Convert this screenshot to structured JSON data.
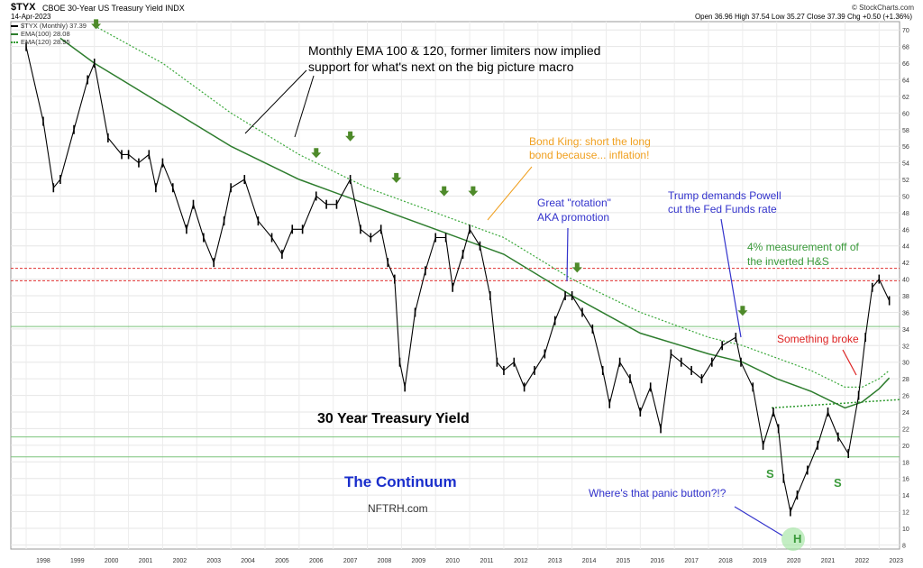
{
  "header": {
    "symbol": "$TYX",
    "description": "CBOE 30-Year US Treasury Yield INDX",
    "date": "14-Apr-2023",
    "watermark": "© StockCharts.com",
    "ohlc": "Open 36.96  High 37.54  Low 35.27  Close 37.39  Chg +0.50 (+1.36%)"
  },
  "legend": {
    "price": "$TYX (Monthly) 37.39",
    "ema100": "EMA(100) 28.08",
    "ema120": "EMA(120) 28.95"
  },
  "annotations": {
    "ema_note_1": "Monthly EMA 100 & 120, former limiters now implied",
    "ema_note_2": "support for what's next on the big picture macro",
    "bond_king_1": "Bond King: short the long",
    "bond_king_2": "bond because... inflation!",
    "rotation_1": "Great \"rotation\"",
    "rotation_2": "AKA promotion",
    "trump_1": "Trump demands Powell",
    "trump_2": "cut the Fed Funds rate",
    "measure_1": "4% measurement off of",
    "measure_2": "the inverted H&S",
    "broke": "Something broke",
    "title": "30 Year Treasury Yield",
    "continuum": "The Continuum",
    "site": "NFTRH.com",
    "panic": "Where's that panic button?!?",
    "s_left": "S",
    "s_right": "S",
    "head": "H"
  },
  "colors": {
    "ema100": "#2e7d2e",
    "ema120": "#3aa83a",
    "arrow_green": "#4e8a2a",
    "red_line": "#e03030",
    "green_line": "#7cc47c",
    "blue_text": "#3333cc",
    "orange_text": "#f0a020",
    "green_text": "#3a9a3a",
    "red_text": "#dd2222",
    "title_blue": "#1a2ecc"
  },
  "chart_data": {
    "type": "line",
    "title": "30 Year Treasury Yield",
    "x_ticks": [
      "1998",
      "1999",
      "2000",
      "2001",
      "2002",
      "2003",
      "2004",
      "2005",
      "2006",
      "2007",
      "2008",
      "2009",
      "2010",
      "2011",
      "2012",
      "2013",
      "2014",
      "2015",
      "2016",
      "2017",
      "2018",
      "2019",
      "2020",
      "2021",
      "2022",
      "2023"
    ],
    "y_ticks": [
      8,
      10,
      12,
      14,
      16,
      18,
      20,
      22,
      24,
      26,
      28,
      30,
      32,
      34,
      36,
      38,
      40,
      42,
      44,
      46,
      48,
      50,
      52,
      54,
      56,
      58,
      60,
      62,
      64,
      66,
      68,
      70
    ],
    "ylim": [
      7.5,
      71
    ],
    "xlim": [
      1997.55,
      2023.6
    ],
    "grid": true,
    "scale": "linear",
    "x": [
      1998.0,
      1998.5,
      1998.8,
      1999.0,
      1999.4,
      1999.8,
      2000.0,
      2000.4,
      2000.8,
      2001.0,
      2001.3,
      2001.6,
      2001.8,
      2002.0,
      2002.3,
      2002.7,
      2002.9,
      2003.2,
      2003.5,
      2003.8,
      2004.0,
      2004.4,
      2004.8,
      2005.2,
      2005.5,
      2005.8,
      2006.1,
      2006.5,
      2006.8,
      2007.1,
      2007.5,
      2007.8,
      2008.1,
      2008.4,
      2008.6,
      2008.8,
      2008.95,
      2009.1,
      2009.4,
      2009.7,
      2010.0,
      2010.3,
      2010.5,
      2010.8,
      2011.0,
      2011.3,
      2011.6,
      2011.8,
      2012.0,
      2012.3,
      2012.6,
      2012.9,
      2013.2,
      2013.5,
      2013.8,
      2014.0,
      2014.3,
      2014.6,
      2014.9,
      2015.1,
      2015.4,
      2015.7,
      2016.0,
      2016.3,
      2016.6,
      2016.9,
      2017.2,
      2017.5,
      2017.8,
      2018.1,
      2018.4,
      2018.8,
      2018.95,
      2019.3,
      2019.6,
      2019.9,
      2020.05,
      2020.2,
      2020.4,
      2020.6,
      2020.9,
      2021.2,
      2021.5,
      2021.8,
      2022.1,
      2022.4,
      2022.6,
      2022.8,
      2023.0,
      2023.3
    ],
    "y": [
      68,
      59,
      51,
      52,
      58,
      64,
      66,
      57,
      55,
      55,
      54,
      55,
      51,
      54,
      51,
      46,
      49,
      45,
      42,
      47,
      51,
      52,
      47,
      45,
      43,
      46,
      46,
      50,
      49,
      49,
      52,
      46,
      45,
      46,
      42,
      40,
      30,
      27,
      36,
      41,
      45,
      45,
      39,
      43,
      46,
      44,
      38,
      30,
      29,
      30,
      27,
      29,
      31,
      35,
      38,
      38,
      36,
      34,
      29,
      25,
      30,
      28,
      24,
      27,
      22,
      31,
      30,
      29,
      28,
      30,
      32,
      33,
      30,
      27,
      20,
      24,
      22,
      16,
      12,
      14,
      17,
      20,
      24,
      21,
      19,
      26,
      33,
      39,
      40,
      37.4
    ],
    "ema100": {
      "name": "EMA(100)",
      "x": [
        1999.0,
        2000.0,
        2002.0,
        2004.0,
        2006.0,
        2008.0,
        2010.0,
        2012.0,
        2014.0,
        2016.0,
        2018.0,
        2019.0,
        2020.0,
        2021.0,
        2022.0,
        2022.5,
        2023.0,
        2023.3
      ],
      "y": [
        69,
        66,
        61,
        56,
        52,
        49,
        46,
        43,
        38,
        33.5,
        31,
        30,
        28,
        26.5,
        24.5,
        25.2,
        26.8,
        28.1
      ]
    },
    "ema120": {
      "name": "EMA(120)",
      "x": [
        2000.0,
        2002.0,
        2004.0,
        2006.0,
        2008.0,
        2010.0,
        2012.0,
        2014.0,
        2016.0,
        2018.0,
        2019.0,
        2020.0,
        2021.0,
        2022.0,
        2022.5,
        2023.0,
        2023.3
      ],
      "y": [
        70.5,
        66,
        60,
        55,
        51,
        48,
        45,
        40,
        36,
        33,
        32,
        30.5,
        29,
        27,
        27,
        28,
        29
      ]
    },
    "hlines": [
      {
        "y": 41.3,
        "style": "red-dash"
      },
      {
        "y": 39.8,
        "style": "red-dash"
      },
      {
        "y": 34.3,
        "style": "green"
      },
      {
        "y": 21.0,
        "style": "green"
      },
      {
        "y": 18.6,
        "style": "green"
      }
    ],
    "neckline": {
      "x": [
        2019.85,
        2023.6
      ],
      "y": [
        24.5,
        25.5
      ]
    },
    "markers": [
      {
        "x": 2000.05,
        "y": 70.3
      },
      {
        "x": 2006.5,
        "y": 54.8
      },
      {
        "x": 2007.5,
        "y": 56.8
      },
      {
        "x": 2008.85,
        "y": 51.8
      },
      {
        "x": 2010.25,
        "y": 50.2
      },
      {
        "x": 2011.1,
        "y": 50.2
      },
      {
        "x": 2014.15,
        "y": 41.0
      },
      {
        "x": 2019.0,
        "y": 35.8
      }
    ]
  }
}
